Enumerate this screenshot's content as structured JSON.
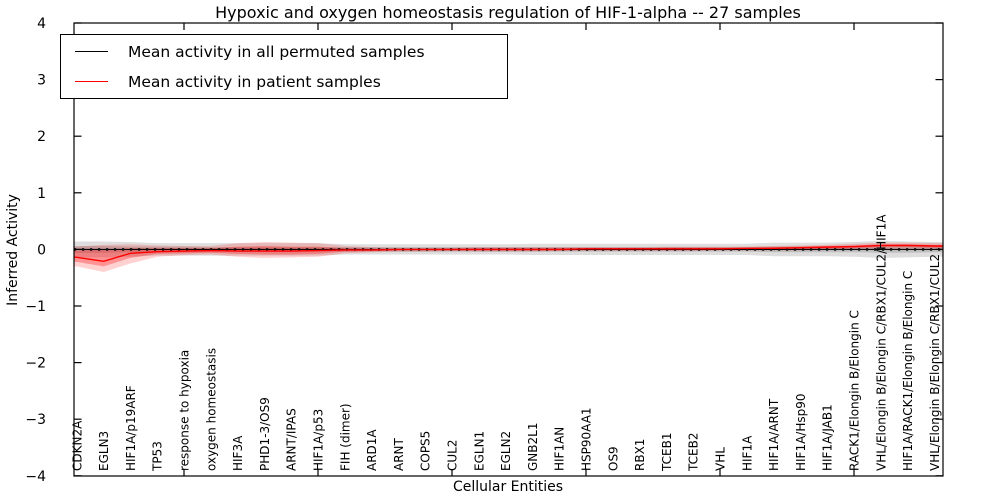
{
  "title": "Hypoxic and oxygen homeostasis regulation of HIF-1-alpha -- 27 samples",
  "axes": {
    "y_label": "Inferred Activity",
    "x_label": "Cellular Entities",
    "y_tick_labels": [
      "4",
      "3",
      "2",
      "1",
      "0",
      "−1",
      "−2",
      "−3",
      "−4"
    ],
    "y_tick_values": [
      4,
      3,
      2,
      1,
      0,
      -1,
      -2,
      -3,
      -4
    ]
  },
  "legend": {
    "items": [
      {
        "label": "Mean activity in all permuted samples",
        "color": "#000000"
      },
      {
        "label": "Mean activity in patient samples",
        "color": "#ff0000"
      }
    ]
  },
  "colors": {
    "permuted_line": "#000000",
    "patient_line": "#ff0000",
    "permuted_band_outer": "rgba(0,0,0,0.13)",
    "permuted_band_inner": "rgba(0,0,0,0.14)",
    "patient_band_outer": "rgba(255,0,0,0.18)",
    "patient_band_inner": "rgba(255,0,0,0.30)",
    "axis": "#000000"
  },
  "chart_data": {
    "type": "line",
    "title": "Hypoxic and oxygen homeostasis regulation of HIF-1-alpha -- 27 samples",
    "xlabel": "Cellular Entities",
    "ylabel": "Inferred Activity",
    "ylim": [
      -4,
      4
    ],
    "grid": false,
    "legend_position": "upper left",
    "categories": [
      "CDKN2A",
      "EGLN3",
      "HIF1A/p19ARF",
      "TP53",
      "response to hypoxia",
      "oxygen homeostasis",
      "HIF3A",
      "PHD1-3/OS9",
      "ARNT/IPAS",
      "HIF1A/p53",
      "FIH (dimer)",
      "ARD1A",
      "ARNT",
      "COPS5",
      "CUL2",
      "EGLN1",
      "EGLN2",
      "GNB2L1",
      "HIF1AN",
      "HSP90AA1",
      "OS9",
      "RBX1",
      "TCEB1",
      "TCEB2",
      "VHL",
      "HIF1A",
      "HIF1A/ARNT",
      "HIF1A/Hsp90",
      "HIF1A/JAB1",
      "RACK1/Elongin B/Elongin C",
      "VHL/Elongin B/Elongin C/RBX1/CUL2/HIF1A",
      "HIF1A/RACK1/Elongin B/Elongin C",
      "VHL/Elongin B/Elongin C/RBX1/CUL2"
    ],
    "x_major_tick_positions": [
      5,
      10,
      15,
      20,
      25,
      30
    ],
    "series": [
      {
        "name": "Mean activity in all permuted samples",
        "values": [
          0,
          0,
          0,
          0,
          0,
          0,
          0,
          0,
          0,
          0,
          0,
          0,
          0,
          0,
          0,
          0,
          0,
          0,
          0,
          0,
          0,
          0,
          0,
          0,
          0,
          0,
          0,
          0,
          0,
          0,
          0,
          0,
          0
        ]
      },
      {
        "name": "Mean activity in patient samples",
        "values": [
          -0.14,
          -0.21,
          -0.07,
          -0.04,
          -0.03,
          -0.02,
          -0.03,
          -0.03,
          -0.03,
          -0.02,
          -0.01,
          -0.01,
          0,
          0,
          0,
          0,
          0,
          0,
          0,
          0.01,
          0.01,
          0.01,
          0.01,
          0.01,
          0.01,
          0.02,
          0.02,
          0.03,
          0.04,
          0.05,
          0.07,
          0.07,
          0.06
        ]
      }
    ],
    "bands": [
      {
        "name": "permuted-outer-band",
        "upper": [
          0.14,
          0.14,
          0.13,
          0.11,
          0.11,
          0.11,
          0.11,
          0.11,
          0.11,
          0.11,
          0.09,
          0.09,
          0.09,
          0.09,
          0.09,
          0.09,
          0.09,
          0.1,
          0.1,
          0.1,
          0.1,
          0.1,
          0.1,
          0.1,
          0.1,
          0.1,
          0.12,
          0.12,
          0.12,
          0.13,
          0.15,
          0.14,
          0.13
        ],
        "lower": [
          -0.14,
          -0.14,
          -0.13,
          -0.11,
          -0.11,
          -0.11,
          -0.11,
          -0.11,
          -0.11,
          -0.11,
          -0.09,
          -0.09,
          -0.09,
          -0.09,
          -0.09,
          -0.09,
          -0.09,
          -0.1,
          -0.1,
          -0.1,
          -0.1,
          -0.1,
          -0.1,
          -0.1,
          -0.1,
          -0.1,
          -0.12,
          -0.12,
          -0.12,
          -0.13,
          -0.15,
          -0.14,
          -0.13
        ]
      },
      {
        "name": "permuted-inner-band",
        "upper": [
          0.06,
          0.06,
          0.05,
          0.05,
          0.05,
          0.04,
          0.04,
          0.04,
          0.04,
          0.04,
          0.04,
          0.04,
          0.04,
          0.04,
          0.04,
          0.04,
          0.04,
          0.04,
          0.04,
          0.04,
          0.04,
          0.04,
          0.04,
          0.04,
          0.04,
          0.04,
          0.05,
          0.05,
          0.05,
          0.05,
          0.06,
          0.06,
          0.05
        ],
        "lower": [
          -0.06,
          -0.06,
          -0.05,
          -0.05,
          -0.05,
          -0.04,
          -0.04,
          -0.04,
          -0.04,
          -0.04,
          -0.04,
          -0.04,
          -0.04,
          -0.04,
          -0.04,
          -0.04,
          -0.04,
          -0.04,
          -0.04,
          -0.04,
          -0.04,
          -0.04,
          -0.04,
          -0.04,
          -0.04,
          -0.04,
          -0.05,
          -0.05,
          -0.05,
          -0.05,
          -0.06,
          -0.06,
          -0.05
        ]
      },
      {
        "name": "patient-outer-band",
        "upper": [
          0.05,
          0.08,
          0.09,
          0.07,
          0.06,
          0.06,
          0.11,
          0.13,
          0.12,
          0.11,
          0.06,
          0.04,
          0.03,
          0.03,
          0.03,
          0.04,
          0.04,
          0.04,
          0.04,
          0.04,
          0.04,
          0.04,
          0.05,
          0.05,
          0.05,
          0.05,
          0.06,
          0.07,
          0.08,
          0.1,
          0.12,
          0.12,
          0.11
        ],
        "lower": [
          -0.3,
          -0.4,
          -0.25,
          -0.13,
          -0.1,
          -0.09,
          -0.13,
          -0.15,
          -0.14,
          -0.13,
          -0.07,
          -0.05,
          -0.04,
          -0.04,
          -0.03,
          -0.04,
          -0.04,
          -0.04,
          -0.03,
          -0.03,
          -0.03,
          -0.03,
          -0.03,
          -0.03,
          -0.02,
          -0.02,
          -0.02,
          -0.02,
          -0.01,
          -0.01,
          0.0,
          0.0,
          0.0
        ]
      },
      {
        "name": "patient-inner-band",
        "upper": [
          -0.02,
          0.0,
          0.02,
          0.02,
          0.02,
          0.02,
          0.05,
          0.06,
          0.05,
          0.05,
          0.02,
          0.01,
          0.01,
          0.01,
          0.01,
          0.02,
          0.02,
          0.02,
          0.02,
          0.02,
          0.02,
          0.02,
          0.03,
          0.03,
          0.03,
          0.03,
          0.04,
          0.05,
          0.06,
          0.07,
          0.09,
          0.09,
          0.08
        ],
        "lower": [
          -0.22,
          -0.3,
          -0.15,
          -0.08,
          -0.07,
          -0.06,
          -0.08,
          -0.09,
          -0.09,
          -0.08,
          -0.04,
          -0.03,
          -0.02,
          -0.02,
          -0.02,
          -0.02,
          -0.02,
          -0.02,
          -0.02,
          -0.01,
          -0.01,
          -0.01,
          -0.01,
          -0.01,
          -0.01,
          0.0,
          0.0,
          0.0,
          0.01,
          0.02,
          0.04,
          0.04,
          0.03
        ]
      }
    ]
  }
}
